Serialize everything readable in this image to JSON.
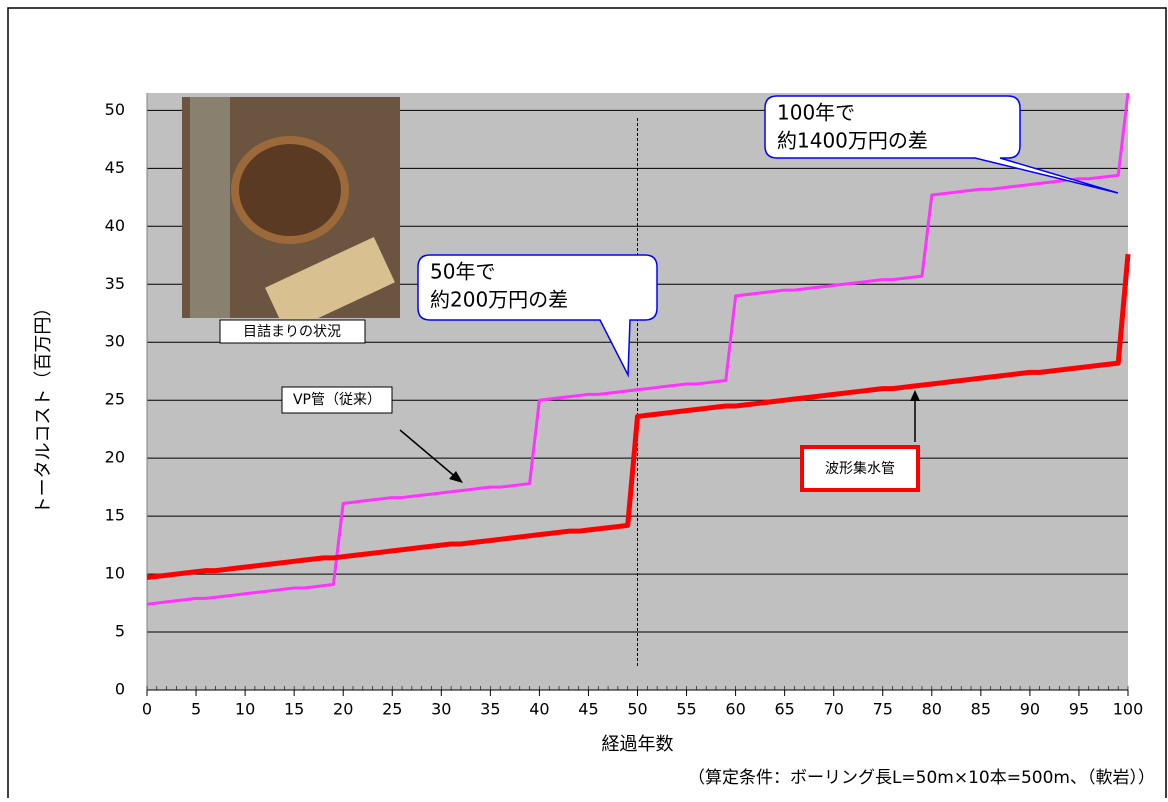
{
  "chart_data": {
    "type": "line",
    "x_label": "経過年数",
    "y_label": "トータルコスト（百万円）",
    "x": [
      0,
      1,
      2,
      3,
      4,
      5,
      6,
      7,
      8,
      9,
      10,
      11,
      12,
      13,
      14,
      15,
      16,
      17,
      18,
      19,
      20,
      21,
      22,
      23,
      24,
      25,
      26,
      27,
      28,
      29,
      30,
      31,
      32,
      33,
      34,
      35,
      36,
      37,
      38,
      39,
      40,
      41,
      42,
      43,
      44,
      45,
      46,
      47,
      48,
      49,
      50,
      51,
      52,
      53,
      54,
      55,
      56,
      57,
      58,
      59,
      60,
      61,
      62,
      63,
      64,
      65,
      66,
      67,
      68,
      69,
      70,
      71,
      72,
      73,
      74,
      75,
      76,
      77,
      78,
      79,
      80,
      81,
      82,
      83,
      84,
      85,
      86,
      87,
      88,
      89,
      90,
      91,
      92,
      93,
      94,
      95,
      96,
      97,
      98,
      99,
      100
    ],
    "series": [
      {
        "name": "VP管（従来）",
        "color": "#ff33ff",
        "values": [
          7.4,
          7.5,
          7.6,
          7.7,
          7.8,
          7.9,
          7.9,
          8.0,
          8.1,
          8.2,
          8.3,
          8.4,
          8.5,
          8.6,
          8.7,
          8.8,
          8.8,
          8.9,
          9.0,
          9.1,
          16.1,
          16.2,
          16.3,
          16.4,
          16.5,
          16.6,
          16.6,
          16.7,
          16.8,
          16.9,
          17.0,
          17.1,
          17.2,
          17.3,
          17.4,
          17.5,
          17.5,
          17.6,
          17.7,
          17.8,
          25.0,
          25.1,
          25.2,
          25.3,
          25.4,
          25.5,
          25.5,
          25.6,
          25.7,
          25.8,
          25.9,
          26.0,
          26.1,
          26.2,
          26.3,
          26.4,
          26.4,
          26.5,
          26.6,
          26.7,
          34.0,
          34.1,
          34.2,
          34.3,
          34.4,
          34.5,
          34.5,
          34.6,
          34.7,
          34.8,
          34.9,
          35.0,
          35.1,
          35.2,
          35.3,
          35.4,
          35.4,
          35.5,
          35.6,
          35.7,
          42.7,
          42.8,
          42.9,
          43.0,
          43.1,
          43.2,
          43.2,
          43.3,
          43.4,
          43.5,
          43.6,
          43.7,
          43.8,
          43.9,
          44.0,
          44.1,
          44.1,
          44.2,
          44.3,
          44.4,
          51.5
        ]
      },
      {
        "name": "波形集水管",
        "color": "#ff0000",
        "values": [
          9.7,
          9.8,
          9.9,
          10.0,
          10.1,
          10.2,
          10.3,
          10.3,
          10.4,
          10.5,
          10.6,
          10.7,
          10.8,
          10.9,
          11.0,
          11.1,
          11.2,
          11.3,
          11.4,
          11.4,
          11.5,
          11.6,
          11.7,
          11.8,
          11.9,
          12.0,
          12.1,
          12.2,
          12.3,
          12.4,
          12.5,
          12.6,
          12.6,
          12.7,
          12.8,
          12.9,
          13.0,
          13.1,
          13.2,
          13.3,
          13.4,
          13.5,
          13.6,
          13.7,
          13.7,
          13.8,
          13.9,
          14.0,
          14.1,
          14.2,
          23.6,
          23.7,
          23.8,
          23.9,
          24.0,
          24.1,
          24.2,
          24.3,
          24.4,
          24.5,
          24.5,
          24.6,
          24.7,
          24.8,
          24.9,
          25.0,
          25.1,
          25.2,
          25.3,
          25.4,
          25.5,
          25.6,
          25.7,
          25.8,
          25.9,
          26.0,
          26.0,
          26.1,
          26.2,
          26.3,
          26.4,
          26.5,
          26.6,
          26.7,
          26.8,
          26.9,
          27.0,
          27.1,
          27.2,
          27.3,
          27.4,
          27.4,
          27.5,
          27.6,
          27.7,
          27.8,
          27.9,
          28.0,
          28.1,
          28.2,
          37.6
        ]
      }
    ],
    "xlim": [
      0,
      100
    ],
    "xticks": [
      0,
      5,
      10,
      15,
      20,
      25,
      30,
      35,
      40,
      45,
      50,
      55,
      60,
      65,
      70,
      75,
      80,
      85,
      90,
      95,
      100
    ],
    "ylim": [
      0,
      51.5
    ],
    "yticks": [
      0,
      5,
      10,
      15,
      20,
      25,
      30,
      35,
      40,
      45,
      50
    ],
    "grid": true,
    "reference_line_x": 50,
    "annotations": [
      [
        "100年で",
        "約1400万円の差"
      ],
      [
        "50年で",
        "約200万円の差"
      ]
    ],
    "photo_caption": "目詰まりの状況",
    "footnote": "（算定条件：ボーリング長L=50m×10本=500m、（軟岩））"
  }
}
